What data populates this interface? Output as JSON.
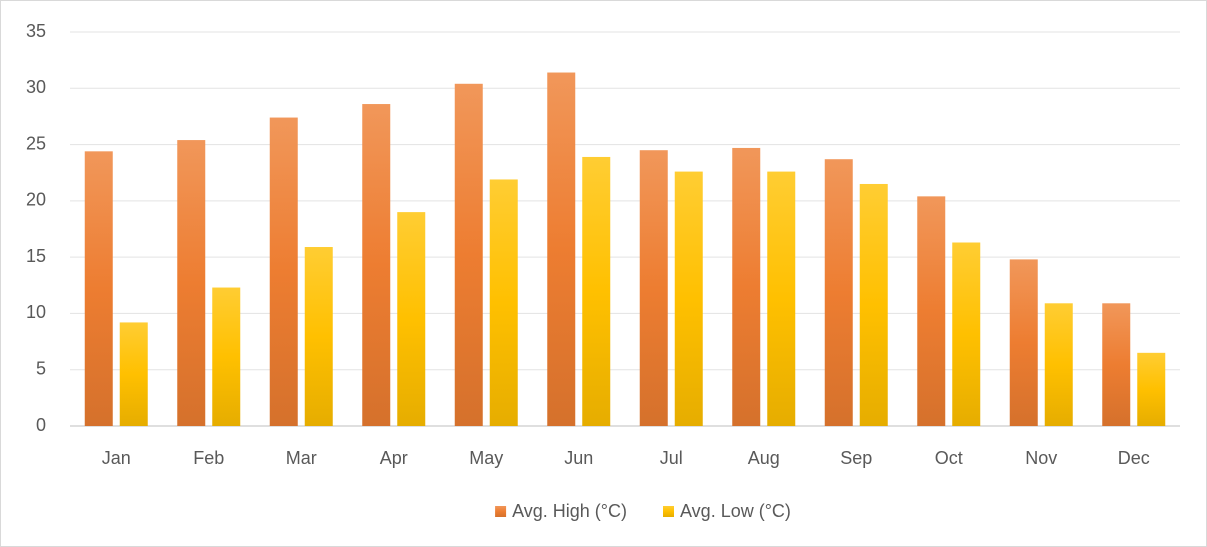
{
  "chart_data": {
    "type": "bar",
    "categories": [
      "Jan",
      "Feb",
      "Mar",
      "Apr",
      "May",
      "Jun",
      "Jul",
      "Aug",
      "Sep",
      "Oct",
      "Nov",
      "Dec"
    ],
    "series": [
      {
        "name": "Avg. High (°C)",
        "color": "#ed7d31",
        "values": [
          24.4,
          25.4,
          27.4,
          28.6,
          30.4,
          31.4,
          24.5,
          24.7,
          23.7,
          20.4,
          14.8,
          10.9
        ]
      },
      {
        "name": "Avg. Low (°C)",
        "color": "#ffc000",
        "values": [
          9.2,
          12.3,
          15.9,
          19.0,
          21.9,
          23.9,
          22.6,
          22.6,
          21.5,
          16.3,
          10.9,
          6.5
        ]
      }
    ],
    "ylim": [
      0,
      35
    ],
    "yticks": [
      0,
      5,
      10,
      15,
      20,
      25,
      30,
      35
    ],
    "grid": true,
    "legend": "bottom"
  }
}
